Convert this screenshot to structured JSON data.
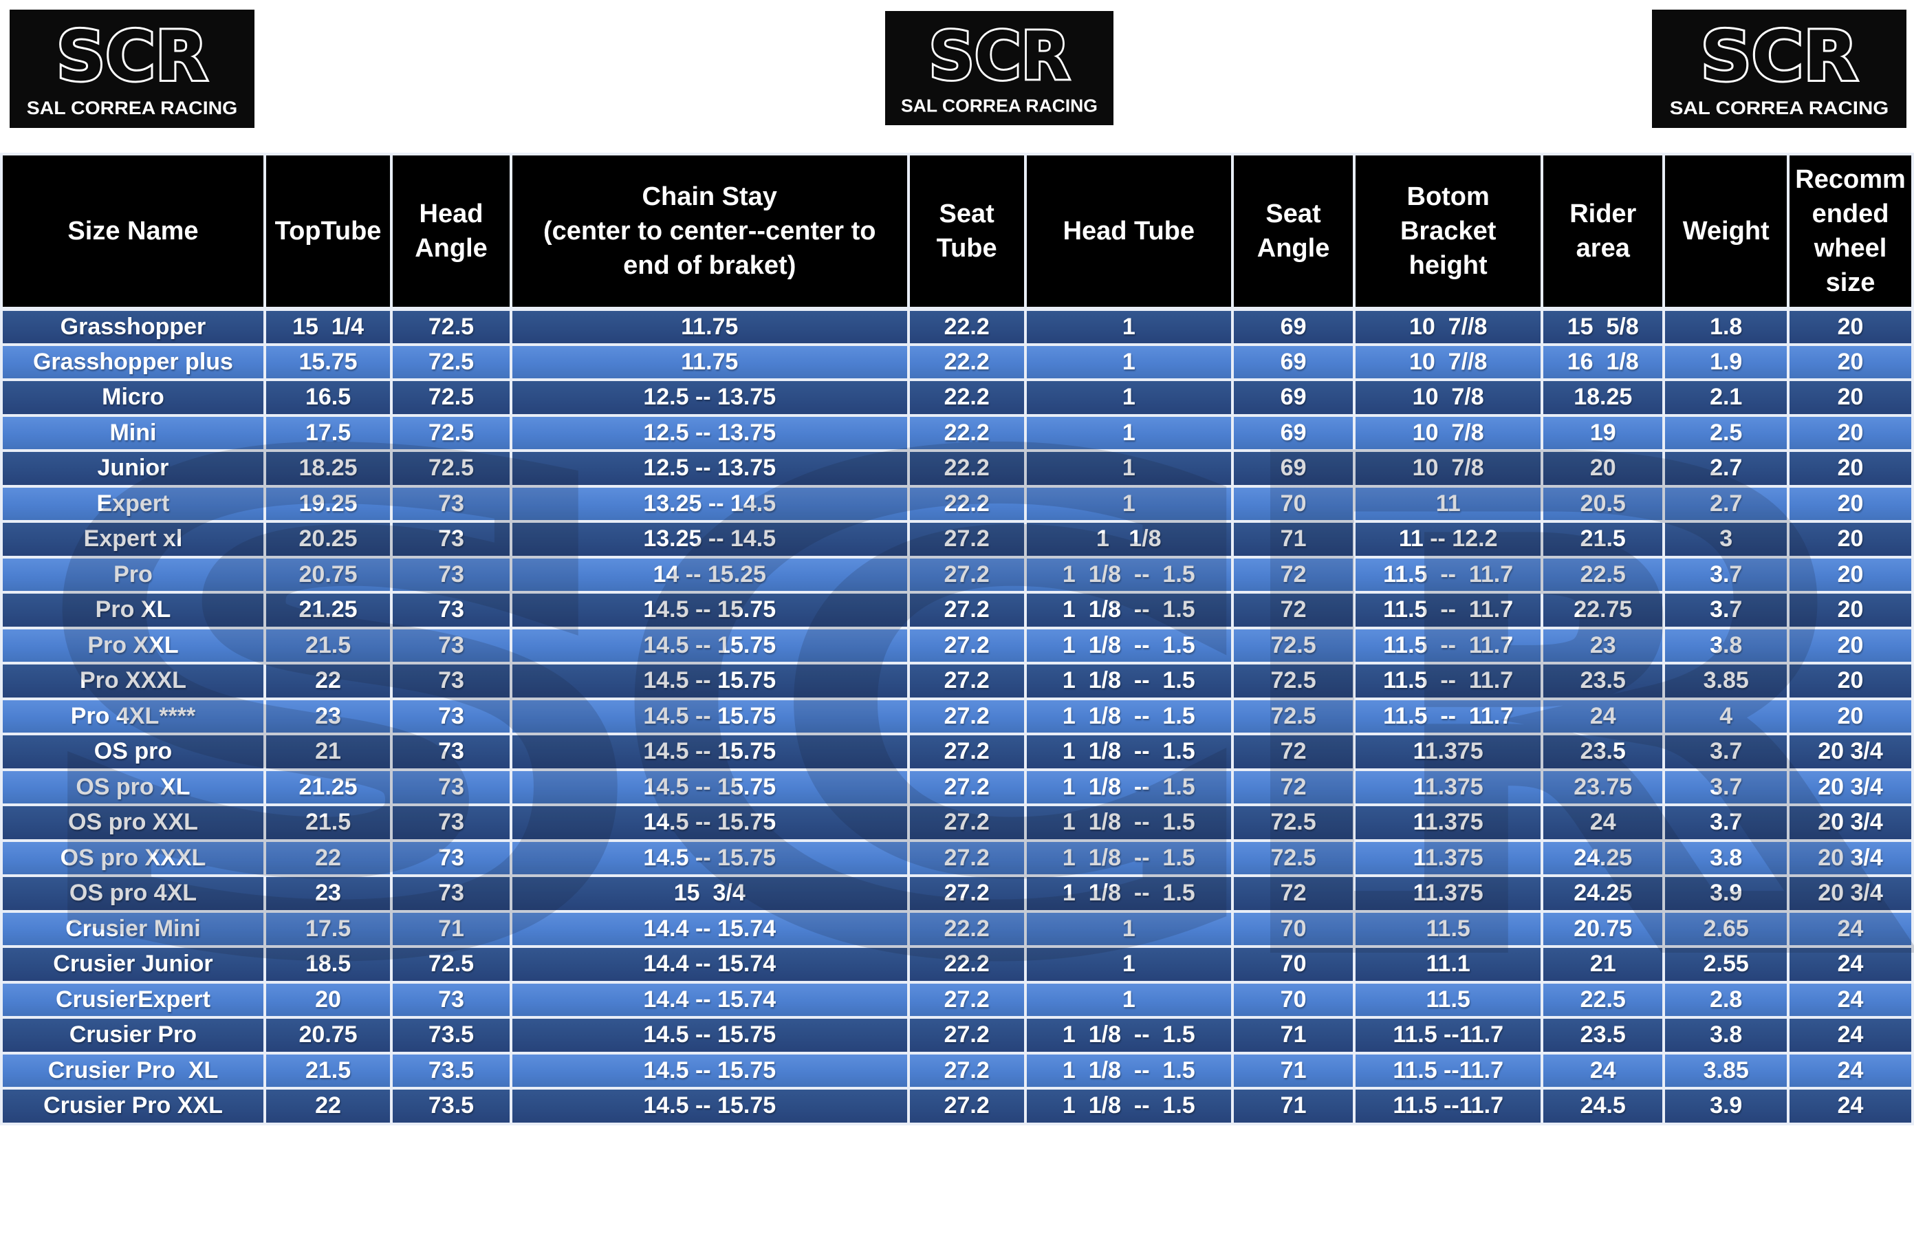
{
  "brand": {
    "logo_text": "SCR",
    "logo_subtext": "SAL CORREA RACING",
    "watermark_text": "SCR"
  },
  "colors": {
    "header_bg": "#000000",
    "row_dark": "#2c4c84",
    "row_light": "#4c7fd0",
    "grid": "#e9eef7",
    "text": "#ffffff"
  },
  "table": {
    "columns": [
      {
        "key": "size-name",
        "label": "Size Name"
      },
      {
        "key": "top-tube",
        "label": "TopTube"
      },
      {
        "key": "head-angle",
        "label": "Head\nAngle"
      },
      {
        "key": "chain-stay",
        "label": "Chain Stay\n(center to center--center to\nend of braket)"
      },
      {
        "key": "seat-tube",
        "label": "Seat\nTube"
      },
      {
        "key": "head-tube",
        "label": "Head Tube"
      },
      {
        "key": "seat-angle",
        "label": "Seat\nAngle"
      },
      {
        "key": "bottom-bracket-height",
        "label": "Botom\nBracket\nheight"
      },
      {
        "key": "rider-area",
        "label": "Rider\narea"
      },
      {
        "key": "weight",
        "label": "Weight"
      },
      {
        "key": "recommended-wheel-size",
        "label": "Recomm\nended\nwheel\nsize"
      }
    ],
    "rows": [
      [
        "Grasshopper",
        "15  1/4",
        "72.5",
        "11.75",
        "22.2",
        "1",
        "69",
        "10  7//8",
        "15  5/8",
        "1.8",
        "20"
      ],
      [
        "Grasshopper plus",
        "15.75",
        "72.5",
        "11.75",
        "22.2",
        "1",
        "69",
        "10  7//8",
        "16  1/8",
        "1.9",
        "20"
      ],
      [
        "Micro",
        "16.5",
        "72.5",
        "12.5 -- 13.75",
        "22.2",
        "1",
        "69",
        "10  7/8",
        "18.25",
        "2.1",
        "20"
      ],
      [
        "Mini",
        "17.5",
        "72.5",
        "12.5 -- 13.75",
        "22.2",
        "1",
        "69",
        "10  7/8",
        "19",
        "2.5",
        "20"
      ],
      [
        "Junior",
        "18.25",
        "72.5",
        "12.5 -- 13.75",
        "22.2",
        "1",
        "69",
        "10  7/8",
        "20",
        "2.7",
        "20"
      ],
      [
        "Expert",
        "19.25",
        "73",
        "13.25 -- 14.5",
        "22.2",
        "1",
        "70",
        "11",
        "20.5",
        "2.7",
        "20"
      ],
      [
        "Expert xl",
        "20.25",
        "73",
        "13.25 -- 14.5",
        "27.2",
        "1   1/8",
        "71",
        "11 -- 12.2",
        "21.5",
        "3",
        "20"
      ],
      [
        "Pro",
        "20.75",
        "73",
        "14 -- 15.25",
        "27.2",
        "1  1/8  --  1.5",
        "72",
        "11.5  --  11.7",
        "22.5",
        "3.7",
        "20"
      ],
      [
        "Pro XL",
        "21.25",
        "73",
        "14.5 -- 15.75",
        "27.2",
        "1  1/8  --  1.5",
        "72",
        "11.5  --  11.7",
        "22.75",
        "3.7",
        "20"
      ],
      [
        "Pro XXL",
        "21.5",
        "73",
        "14.5 -- 15.75",
        "27.2",
        "1  1/8  --  1.5",
        "72.5",
        "11.5  --  11.7",
        "23",
        "3.8",
        "20"
      ],
      [
        "Pro XXXL",
        "22",
        "73",
        "14.5 -- 15.75",
        "27.2",
        "1  1/8  --  1.5",
        "72.5",
        "11.5  --  11.7",
        "23.5",
        "3.85",
        "20"
      ],
      [
        "Pro 4XL****",
        "23",
        "73",
        "14.5 -- 15.75",
        "27.2",
        "1  1/8  --  1.5",
        "72.5",
        "11.5  --  11.7",
        "24",
        "4",
        "20"
      ],
      [
        "OS pro",
        "21",
        "73",
        "14.5 -- 15.75",
        "27.2",
        "1  1/8  --  1.5",
        "72",
        "11.375",
        "23.5",
        "3.7",
        "20 3/4"
      ],
      [
        "OS pro XL",
        "21.25",
        "73",
        "14.5 -- 15.75",
        "27.2",
        "1  1/8  --  1.5",
        "72",
        "11.375",
        "23.75",
        "3.7",
        "20 3/4"
      ],
      [
        "OS pro XXL",
        "21.5",
        "73",
        "14.5 -- 15.75",
        "27.2",
        "1  1/8  --  1.5",
        "72.5",
        "11.375",
        "24",
        "3.7",
        "20 3/4"
      ],
      [
        "OS pro XXXL",
        "22",
        "73",
        "14.5 -- 15.75",
        "27.2",
        "1  1/8  --  1.5",
        "72.5",
        "11.375",
        "24.25",
        "3.8",
        "20 3/4"
      ],
      [
        "OS pro 4XL",
        "23",
        "73",
        "15  3/4",
        "27.2",
        "1  1/8  --  1.5",
        "72",
        "11.375",
        "24.25",
        "3.9",
        "20 3/4"
      ],
      [
        "Crusier Mini",
        "17.5",
        "71",
        "14.4 -- 15.74",
        "22.2",
        "1",
        "70",
        "11.5",
        "20.75",
        "2.65",
        "24"
      ],
      [
        "Crusier Junior",
        "18.5",
        "72.5",
        "14.4 -- 15.74",
        "22.2",
        "1",
        "70",
        "11.1",
        "21",
        "2.55",
        "24"
      ],
      [
        "CrusierExpert",
        "20",
        "73",
        "14.4 -- 15.74",
        "27.2",
        "1",
        "70",
        "11.5",
        "22.5",
        "2.8",
        "24"
      ],
      [
        "Crusier Pro",
        "20.75",
        "73.5",
        "14.5 -- 15.75",
        "27.2",
        "1  1/8  --  1.5",
        "71",
        "11.5 --11.7",
        "23.5",
        "3.8",
        "24"
      ],
      [
        "Crusier Pro  XL",
        "21.5",
        "73.5",
        "14.5 -- 15.75",
        "27.2",
        "1  1/8  --  1.5",
        "71",
        "11.5 --11.7",
        "24",
        "3.85",
        "24"
      ],
      [
        "Crusier Pro XXL",
        "22",
        "73.5",
        "14.5 -- 15.75",
        "27.2",
        "1  1/8  --  1.5",
        "71",
        "11.5 --11.7",
        "24.5",
        "3.9",
        "24"
      ]
    ]
  }
}
